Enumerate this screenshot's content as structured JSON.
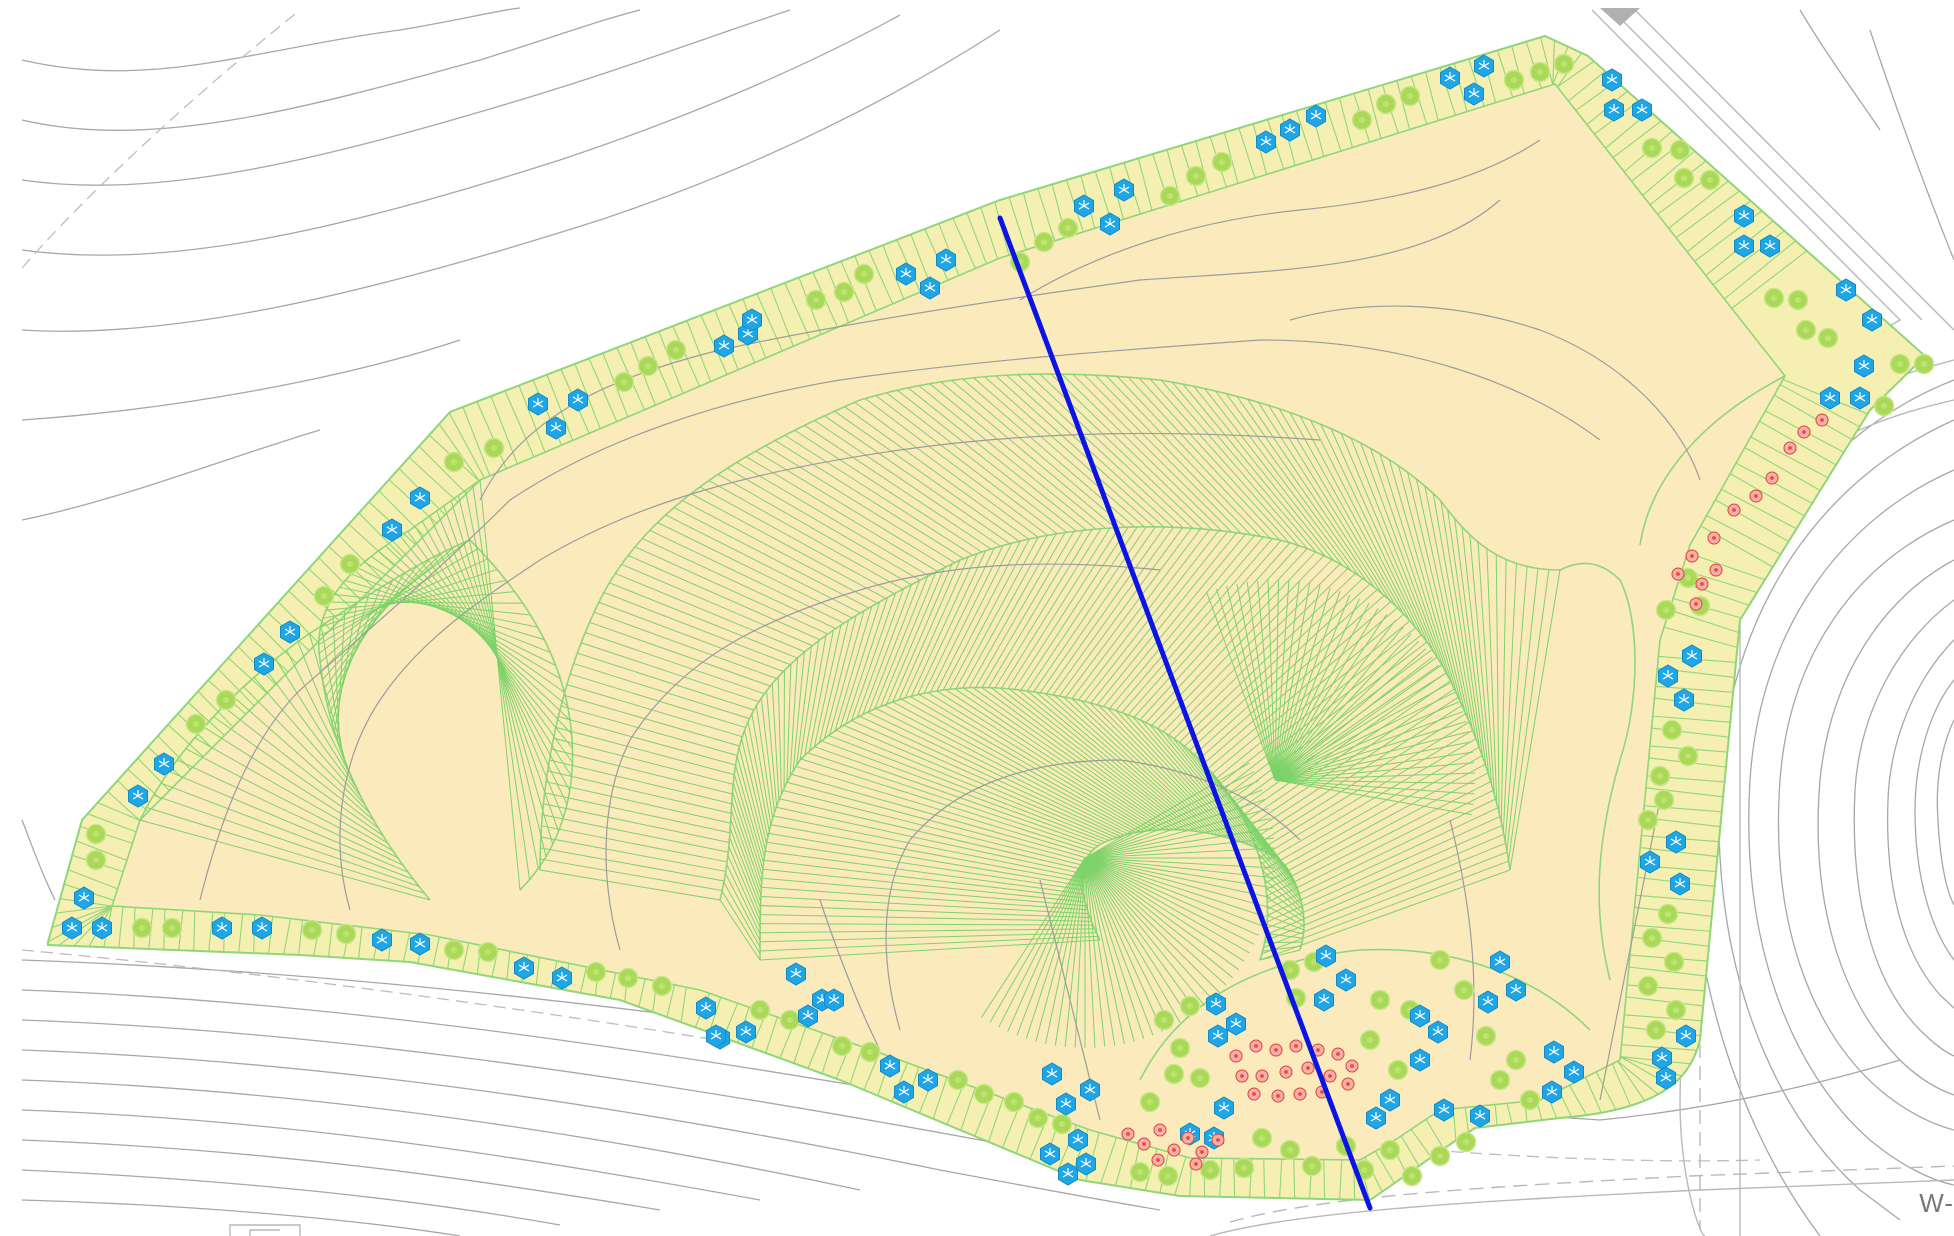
{
  "map": {
    "edge_label": "W-",
    "colors": {
      "background": "#ffffff",
      "site_fill": "#fbeabb",
      "buffer_fill": "#f6efb2",
      "buffer_outline": "#8fd67a",
      "hatch": "#7dd36a",
      "contour": "#a7a7a7",
      "road_line": "#b9b9b9",
      "section_line": "#0a14e6",
      "tree_green": "#a9d957",
      "tree_blue": "#1fa6e6",
      "shrub_red": "#ea5b52",
      "corner_mark": "#b0b0b0"
    },
    "legend_of_symbols": [
      "green-tree-icon",
      "blue-tree-icon",
      "red-shrub-icon"
    ]
  }
}
